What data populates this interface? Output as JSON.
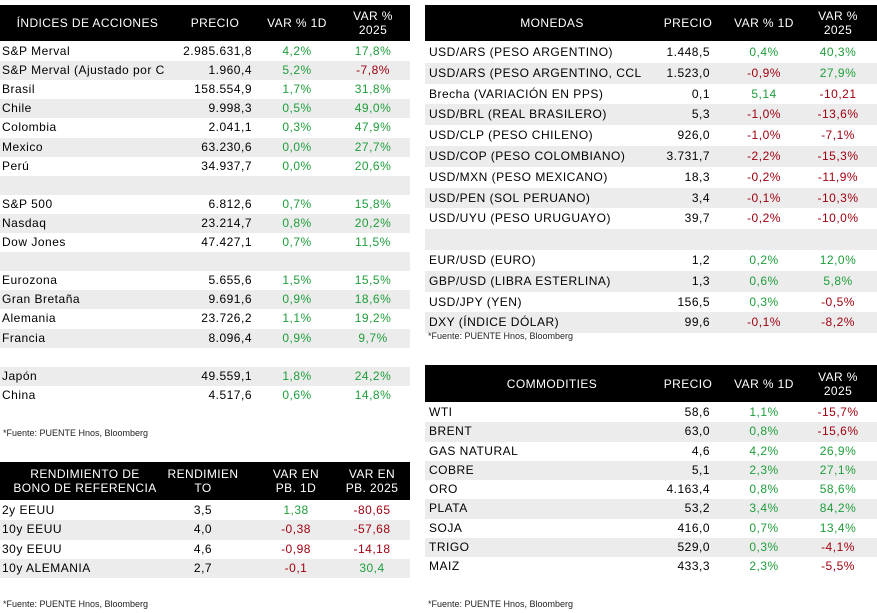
{
  "tables": [
    {
      "headers": [
        "ÍNDICES DE ACCIONES",
        "PRECIO",
        "VAR % 1D",
        "VAR %\n2025"
      ],
      "groups": [
        [
          [
            "S&P Merval",
            "2.985.631,8",
            "4,2%",
            "17,8%"
          ],
          [
            "S&P Merval (Ajustado por C",
            "1.960,4",
            "5,2%",
            "-7,8%"
          ],
          [
            "Brasil",
            "158.554,9",
            "1,7%",
            "31,8%"
          ],
          [
            "Chile",
            "9.998,3",
            "0,5%",
            "49,0%"
          ],
          [
            "Colombia",
            "2.041,1",
            "0,3%",
            "47,9%"
          ],
          [
            "Mexico",
            "63.230,6",
            "0,0%",
            "27,7%"
          ],
          [
            "Perú",
            "34.937,7",
            "0,0%",
            "20,6%"
          ]
        ],
        [
          [
            "S&P 500",
            "6.812,6",
            "0,7%",
            "15,8%"
          ],
          [
            "Nasdaq",
            "23.214,7",
            "0,8%",
            "20,2%"
          ],
          [
            "Dow Jones",
            "47.427,1",
            "0,7%",
            "11,5%"
          ]
        ],
        [
          [
            "Eurozona",
            "5.655,6",
            "1,5%",
            "15,5%"
          ],
          [
            "Gran Bretaña",
            "9.691,6",
            "0,9%",
            "18,6%"
          ],
          [
            "Alemania",
            "23.726,2",
            "1,1%",
            "19,2%"
          ],
          [
            "Francia",
            "8.096,4",
            "0,9%",
            "9,7%"
          ]
        ],
        [
          [
            "Japón",
            "49.559,1",
            "1,8%",
            "24,2%"
          ],
          [
            "China",
            "4.517,6",
            "0,6%",
            "14,8%"
          ]
        ]
      ],
      "footnote": "*Fuente: PUENTE Hnos, Bloomberg"
    },
    {
      "headers": [
        "RENDIMIENTO DE\nBONO DE REFERENCIA",
        "RENDIMIEN\nTO",
        "VAR EN\nPB. 1D",
        "VAR EN\nPB. 2025"
      ],
      "groups": [
        [
          [
            "2y EEUU",
            "3,5",
            "1,38",
            "-80,65"
          ],
          [
            "10y EEUU",
            "4,0",
            "-0,38",
            "-57,68"
          ],
          [
            "30y EEUU",
            "4,6",
            "-0,98",
            "-14,18"
          ],
          [
            "10y ALEMANIA",
            "2,7",
            "-0,1",
            "30,4"
          ]
        ]
      ],
      "footnote": "*Fuente: PUENTE Hnos, Bloomberg"
    },
    {
      "headers": [
        "MONEDAS",
        "PRECIO",
        "VAR % 1D",
        "VAR %\n2025"
      ],
      "groups": [
        [
          [
            "USD/ARS (PESO ARGENTINO)",
            "1.448,5",
            "0,4%",
            "40,3%"
          ],
          [
            "USD/ARS (PESO ARGENTINO, CCL",
            "1.523,0",
            "-0,9%",
            "27,9%"
          ],
          [
            "Brecha (VARIACIÓN EN PPS)",
            "0,1",
            "5,14",
            "-10,21"
          ],
          [
            "USD/BRL (REAL BRASILERO)",
            "5,3",
            "-1,0%",
            "-13,6%"
          ],
          [
            "USD/CLP (PESO CHILENO)",
            "926,0",
            "-1,0%",
            "-7,1%"
          ],
          [
            "USD/COP (PESO COLOMBIANO)",
            "3.731,7",
            "-2,2%",
            "-15,3%"
          ],
          [
            "USD/MXN (PESO MEXICANO)",
            "18,3",
            "-0,2%",
            "-11,9%"
          ],
          [
            "USD/PEN (SOL PERUANO)",
            "3,4",
            "-0,1%",
            "-10,3%"
          ],
          [
            "USD/UYU (PESO URUGUAYO)",
            "39,7",
            "-0,2%",
            "-10,0%"
          ]
        ],
        [
          [
            "EUR/USD (EURO)",
            "1,2",
            "0,2%",
            "12,0%"
          ],
          [
            "GBP/USD (LIBRA ESTERLINA)",
            "1,3",
            "0,6%",
            "5,8%"
          ],
          [
            "USD/JPY (YEN)",
            "156,5",
            "0,3%",
            "-0,5%"
          ],
          [
            "DXY (ÍNDICE DÓLAR)",
            "99,6",
            "-0,1%",
            "-8,2%"
          ]
        ]
      ],
      "footnote": "*Fuente: PUENTE Hnos, Bloomberg"
    },
    {
      "headers": [
        "COMMODITIES",
        "PRECIO",
        "VAR % 1D",
        "VAR %\n2025"
      ],
      "groups": [
        [
          [
            "WTI",
            "58,6",
            "1,1%",
            "-15,7%"
          ],
          [
            "BRENT",
            "63,0",
            "0,8%",
            "-15,6%"
          ],
          [
            "GAS NATURAL",
            "4,6",
            "4,2%",
            "26,9%"
          ],
          [
            "COBRE",
            "5,1",
            "2,3%",
            "27,1%"
          ],
          [
            "ORO",
            "4.163,4",
            "0,8%",
            "58,6%"
          ],
          [
            "PLATA",
            "53,2",
            "3,4%",
            "84,2%"
          ],
          [
            "SOJA",
            "416,0",
            "0,7%",
            "13,4%"
          ],
          [
            "TRIGO",
            "529,0",
            "0,3%",
            "-4,1%"
          ],
          [
            "MAIZ",
            "433,3",
            "2,3%",
            "-5,5%"
          ]
        ]
      ],
      "footnote": "*Fuente: PUENTE Hnos, Bloomberg"
    }
  ]
}
